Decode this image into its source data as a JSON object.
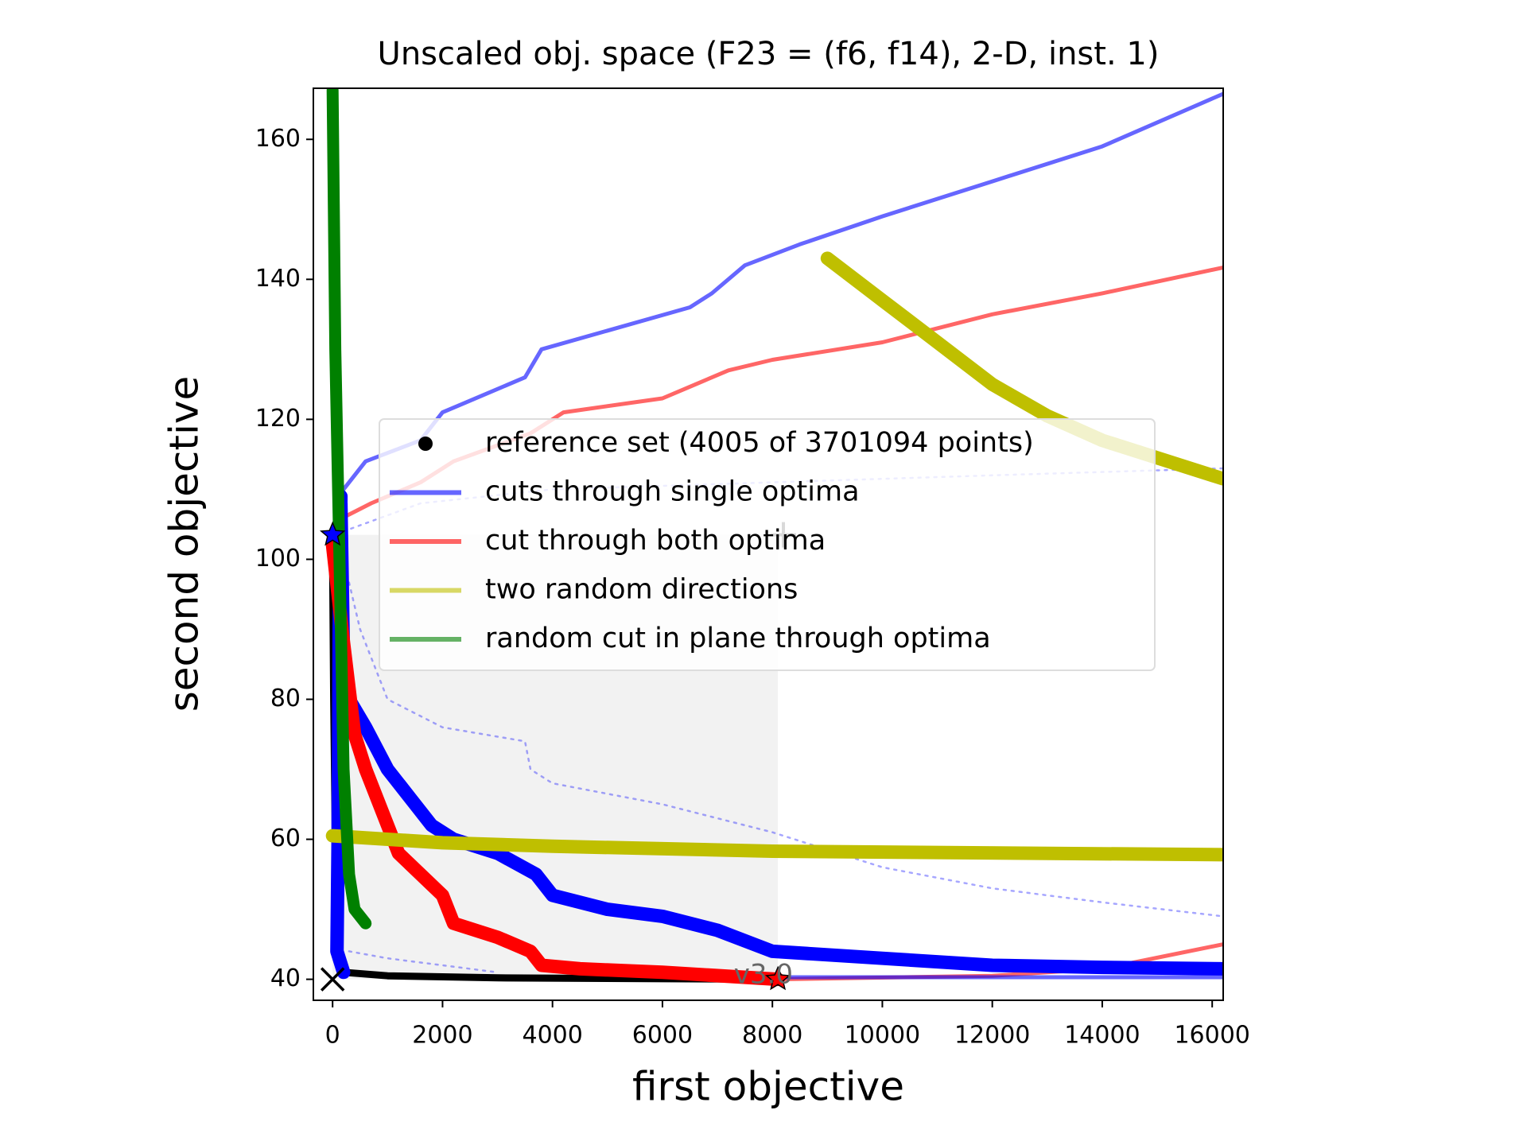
{
  "chart_data": {
    "type": "line",
    "title": "Unscaled obj. space (F23 = (f6, f14), 2-D, inst. 1)",
    "x_label": "first objective",
    "y_label": "second objective",
    "xlim": [
      -350,
      16200
    ],
    "ylim": [
      37,
      167.3
    ],
    "xticks": [
      0,
      2000,
      4000,
      6000,
      8000,
      10000,
      12000,
      14000,
      16000
    ],
    "yticks": [
      40,
      60,
      80,
      100,
      120,
      140,
      160
    ],
    "shaded": {
      "x": [
        0,
        8100
      ],
      "y": [
        40,
        103.5
      ],
      "color": "#f2f2f2"
    },
    "series": [
      {
        "name": "reference set (4005 of 3701094 points)",
        "color": "#000000",
        "marker": "dot",
        "width": 9,
        "x": [
          0,
          20,
          50,
          80,
          200,
          1000,
          3000,
          8100
        ],
        "values": [
          100,
          80,
          60,
          45,
          41,
          40.5,
          40.2,
          40
        ]
      },
      {
        "name": "cuts through single optima",
        "color": "#0000ff",
        "width": 17,
        "x": [
          150,
          120,
          100,
          80,
          200,
          null,
          150,
          200,
          300,
          600,
          1000,
          1400,
          1800,
          2200,
          3000,
          3700,
          4000,
          5000,
          6000,
          7000,
          8000,
          10000,
          12000,
          14000,
          16200
        ],
        "values": [
          109,
          90,
          60,
          44,
          41,
          null,
          108,
          85,
          80,
          76,
          70,
          66,
          62,
          60,
          58,
          55,
          52,
          50,
          49,
          47,
          44,
          43,
          42,
          41.7,
          41.5
        ]
      },
      {
        "name": "cut through both optima",
        "color": "#ff0000",
        "width": 17,
        "x": [
          0,
          100,
          200,
          400,
          600,
          1000,
          1200,
          1600,
          2000,
          2200,
          3000,
          3600,
          3800,
          4500,
          6000,
          8100
        ],
        "values": [
          102,
          95,
          88,
          75,
          70,
          62,
          58,
          55,
          52,
          48,
          46,
          44,
          42,
          41.5,
          41,
          40
        ]
      },
      {
        "name": "two random directions",
        "color": "#bfbf00",
        "width": 17,
        "x": [
          0,
          2000,
          4000,
          8000,
          16200,
          null,
          9000,
          10000,
          11000,
          12000,
          13000,
          14000,
          16200
        ],
        "values": [
          60.5,
          59.5,
          59,
          58.3,
          57.8,
          null,
          143,
          137,
          131,
          125,
          120.5,
          117,
          111.5
        ]
      },
      {
        "name": "random cut in plane through optima",
        "color": "#008000",
        "width": 15,
        "x": [
          0,
          50,
          100,
          150,
          200,
          300,
          400,
          600
        ],
        "values": [
          167,
          130,
          110,
          90,
          70,
          55,
          50,
          48
        ]
      }
    ],
    "lines": [
      {
        "color": "#0000ff",
        "opacity": 0.6,
        "width": 5,
        "x": [
          0,
          200,
          600,
          1600,
          2000,
          3500,
          3800,
          6500,
          6900,
          7500,
          8500,
          10000,
          12000,
          14000,
          16200
        ],
        "values": [
          104,
          110,
          114,
          117,
          121,
          126,
          130,
          136,
          138,
          142,
          145,
          149,
          154,
          159,
          166.5
        ]
      },
      {
        "color": "#ff0000",
        "opacity": 0.6,
        "width": 5,
        "x": [
          0,
          200,
          700,
          1600,
          2200,
          3600,
          4200,
          6000,
          6600,
          7200,
          8000,
          10000,
          12000,
          14000,
          16200
        ],
        "values": [
          104,
          106,
          108,
          111,
          114,
          118,
          121,
          123,
          125,
          127,
          128.5,
          131,
          135,
          138,
          141.7
        ]
      },
      {
        "color": "#ff0000",
        "opacity": 0.6,
        "width": 5,
        "x": [
          8100,
          12000,
          14000,
          16200
        ],
        "values": [
          40,
          40.5,
          41.5,
          45
        ]
      },
      {
        "color": "#0000ff",
        "opacity": 0.6,
        "width": 5,
        "x": [
          8100,
          16200
        ],
        "values": [
          40.3,
          40.3
        ]
      },
      {
        "color": "#0000ff",
        "opacity": 0.35,
        "width": 2.5,
        "dash": true,
        "x": [
          200,
          1600,
          4000,
          8000,
          12000,
          16200
        ],
        "values": [
          104,
          108,
          110,
          111,
          112,
          113
        ]
      },
      {
        "color": "#0000ff",
        "opacity": 0.35,
        "width": 2.5,
        "dash": true,
        "x": [
          200,
          500,
          1000,
          2000,
          3500,
          3600,
          4000,
          6000,
          8000,
          10000,
          12000,
          14000,
          16200
        ],
        "values": [
          100,
          90,
          80,
          76,
          74,
          70,
          68,
          65,
          61,
          56,
          53,
          51,
          49
        ]
      },
      {
        "color": "#0000ff",
        "opacity": 0.35,
        "width": 2.5,
        "dash": true,
        "x": [
          300,
          1000,
          2000,
          3000
        ],
        "values": [
          44,
          43,
          42,
          41
        ]
      }
    ],
    "markers": [
      {
        "shape": "star",
        "color": "#0000ff",
        "x": 0,
        "y": 103.5
      },
      {
        "shape": "star",
        "color": "#ff0000",
        "x": 8100,
        "y": 40
      },
      {
        "shape": "cross",
        "color": "#000000",
        "x": 0,
        "y": 40
      },
      {
        "shape": "plus",
        "color": "#444444",
        "x": 8200,
        "y": 103.5
      }
    ],
    "annotations": [
      {
        "text": "v3.0",
        "x": 7300,
        "y": 40.5
      }
    ]
  }
}
